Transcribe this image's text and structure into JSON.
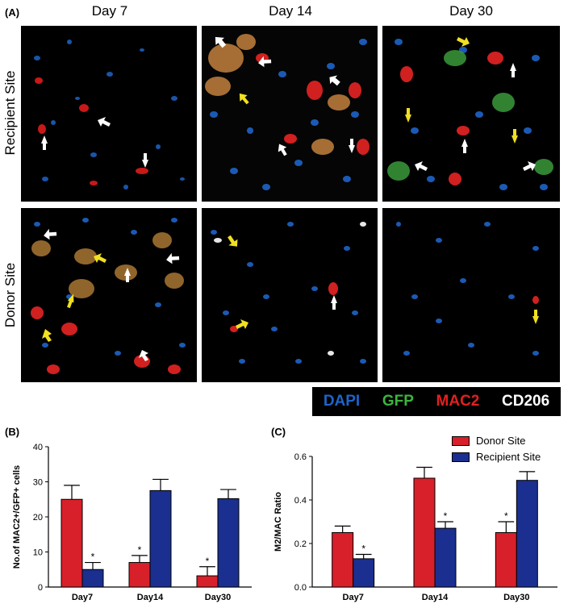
{
  "panel_a": {
    "label": "(A)",
    "columns": [
      "Day 7",
      "Day 14",
      "Day 30"
    ],
    "rows": [
      "Recipient Site",
      "Donor Site"
    ],
    "stain_legend": [
      {
        "text": "DAPI",
        "color": "#1e64c8"
      },
      {
        "text": "GFP",
        "color": "#3cb43c"
      },
      {
        "text": "MAC2",
        "color": "#e02020"
      },
      {
        "text": "CD206",
        "color": "#ffffff"
      }
    ]
  },
  "colors": {
    "donor": "#d8202a",
    "recipient": "#1a2f8f"
  },
  "legend": {
    "donor": "Donor Site",
    "recipient": "Recipient Site"
  },
  "chart_data": [
    {
      "label": "(B)",
      "type": "bar",
      "ylabel": "No.of MAC2+/GFP+ cells",
      "categories": [
        "Day7",
        "Day14",
        "Day30"
      ],
      "ylim": [
        0,
        40
      ],
      "yticks": [
        "0",
        "10",
        "20",
        "30",
        "40"
      ],
      "series": [
        {
          "name": "Donor Site",
          "values": [
            25,
            7,
            3.2
          ],
          "errors": [
            4,
            2,
            2.6
          ],
          "significant": [
            false,
            true,
            true
          ]
        },
        {
          "name": "Recipient Site",
          "values": [
            5,
            27.5,
            25.2
          ],
          "errors": [
            2,
            3.2,
            2.6
          ],
          "significant": [
            true,
            false,
            false
          ]
        }
      ],
      "sig_marker": "*"
    },
    {
      "label": "(C)",
      "type": "bar",
      "ylabel": "M2/MAC Ratio",
      "categories": [
        "Day7",
        "Day14",
        "Day30"
      ],
      "ylim": [
        0,
        0.6
      ],
      "yticks": [
        "0.0",
        "0.2",
        "0.4",
        "0.6"
      ],
      "series": [
        {
          "name": "Donor Site",
          "values": [
            0.25,
            0.5,
            0.25
          ],
          "errors": [
            0.03,
            0.05,
            0.05
          ],
          "significant": [
            false,
            false,
            true
          ]
        },
        {
          "name": "Recipient Site",
          "values": [
            0.13,
            0.27,
            0.49
          ],
          "errors": [
            0.02,
            0.03,
            0.04
          ],
          "significant": [
            true,
            true,
            false
          ]
        }
      ],
      "sig_marker": "*"
    }
  ]
}
